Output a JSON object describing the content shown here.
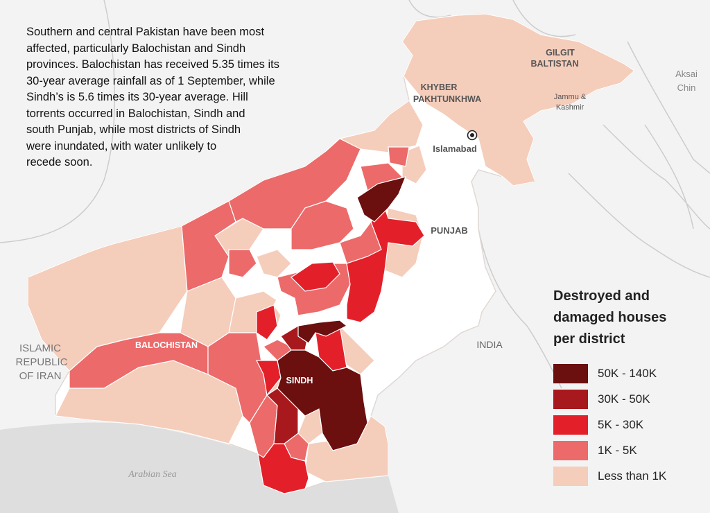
{
  "intro_lines": [
    "Southern and central Pakistan have been most",
    "affected, particularly Balochistan and Sindh",
    "provinces. Balochistan has received 5.35 times its",
    "30-year average rainfall as of 1 September, while",
    "Sindh’s is 5.6 times its 30-year average.  Hill",
    "torrents occurred in Balochistan, Sindh and",
    "south Punjab, while most districts of Sindh",
    "were inundated, with water unlikely to",
    "recede soon."
  ],
  "labels": {
    "gilgit": [
      "GILGIT",
      "BALTISTAN"
    ],
    "aksai": [
      "Aksai",
      "Chin"
    ],
    "kp": [
      "KHYBER",
      "PAKHTUNKHWA"
    ],
    "jk": [
      "Jammu &",
      "Kashmir"
    ],
    "islamabad": "Islamabad",
    "punjab": "PUNJAB",
    "india": "INDIA",
    "balochistan": "BALOCHISTAN",
    "sindh": "SINDH",
    "iran": [
      "ISLAMIC",
      "REPUBLIC",
      "OF IRAN"
    ],
    "arabian_sea": "Arabian Sea"
  },
  "legend": {
    "title_lines": [
      "Destroyed and",
      "damaged houses",
      "per district"
    ],
    "items": [
      {
        "label": "50K - 140K",
        "color": "#6b0f0f"
      },
      {
        "label": "30K - 50K",
        "color": "#a8191d"
      },
      {
        "label": "5K - 30K",
        "color": "#e3202a"
      },
      {
        "label": "1K - 5K",
        "color": "#ec6a6a"
      },
      {
        "label": "Less than 1K",
        "color": "#f5cdbb"
      }
    ]
  },
  "colors": {
    "land": "#f3f3f3",
    "sea": "#dedede",
    "border": "#cccccc",
    "pakistan_base": "#ffffff"
  }
}
